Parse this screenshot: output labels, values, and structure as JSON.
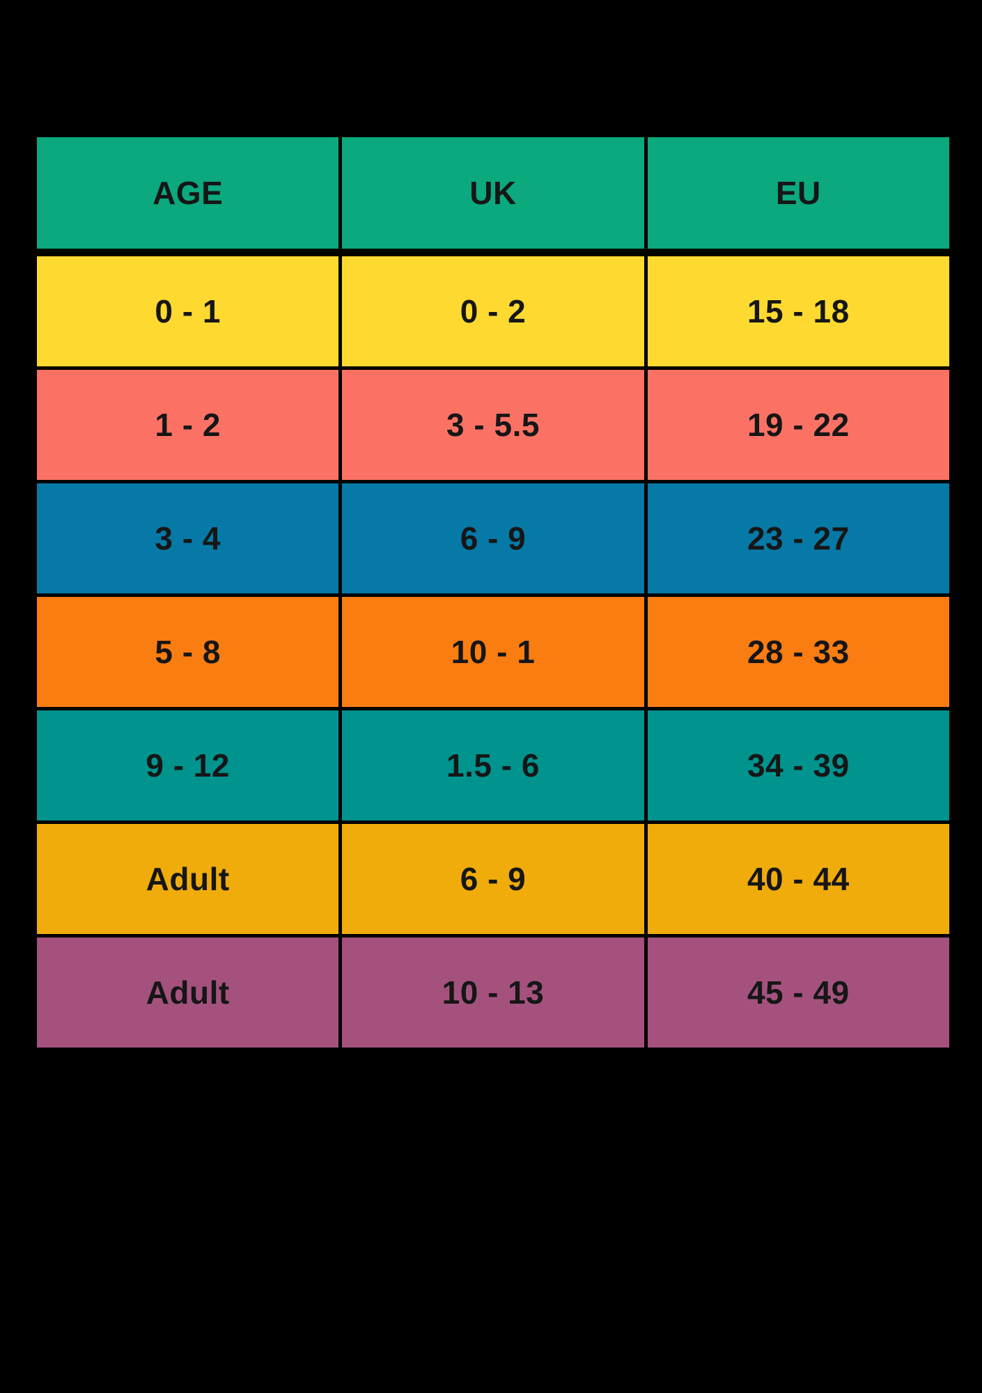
{
  "colors": {
    "canvas": "#000000",
    "text": "#161616",
    "header_bg": "#0BA97D"
  },
  "header": {
    "cells": [
      "AGE",
      "UK",
      "EU"
    ]
  },
  "rows": [
    {
      "age": "0 - 1",
      "uk": "0 - 2",
      "eu": "15 - 18",
      "bg": "#FED930"
    },
    {
      "age": "1 - 2",
      "uk": "3 - 5.5",
      "eu": "19 - 22",
      "bg": "#FB7265"
    },
    {
      "age": "3 - 4",
      "uk": "6 - 9",
      "eu": "23 - 27",
      "bg": "#0779A6"
    },
    {
      "age": "5 - 8",
      "uk": "10 - 1",
      "eu": "28 - 33",
      "bg": "#FA7D12"
    },
    {
      "age": "9 - 12",
      "uk": "1.5 - 6",
      "eu": "34 - 39",
      "bg": "#01938E"
    },
    {
      "age": "Adult",
      "uk": "6 - 9",
      "eu": "40 - 44",
      "bg": "#F0AC0B"
    },
    {
      "age": "Adult",
      "uk": "10 - 13",
      "eu": "45 - 49",
      "bg": "#A4527D"
    }
  ],
  "chart_data": {
    "type": "table",
    "title": "",
    "columns": [
      "AGE",
      "UK",
      "EU"
    ],
    "rows": [
      [
        "0 - 1",
        "0 - 2",
        "15 - 18"
      ],
      [
        "1 - 2",
        "3 - 5.5",
        "19 - 22"
      ],
      [
        "3 - 4",
        "6 - 9",
        "23 - 27"
      ],
      [
        "5 - 8",
        "10 - 1",
        "28 - 33"
      ],
      [
        "9 - 12",
        "1.5 - 6",
        "34 - 39"
      ],
      [
        "Adult",
        "6 - 9",
        "40 - 44"
      ],
      [
        "Adult",
        "10 - 13",
        "45 - 49"
      ]
    ],
    "header_color": "#0BA97D",
    "row_colors": [
      "#FED930",
      "#FB7265",
      "#0779A6",
      "#FA7D12",
      "#01938E",
      "#F0AC0B",
      "#A4527D"
    ],
    "grid": "black 5px separators on black background, wider 11px gap below header"
  }
}
